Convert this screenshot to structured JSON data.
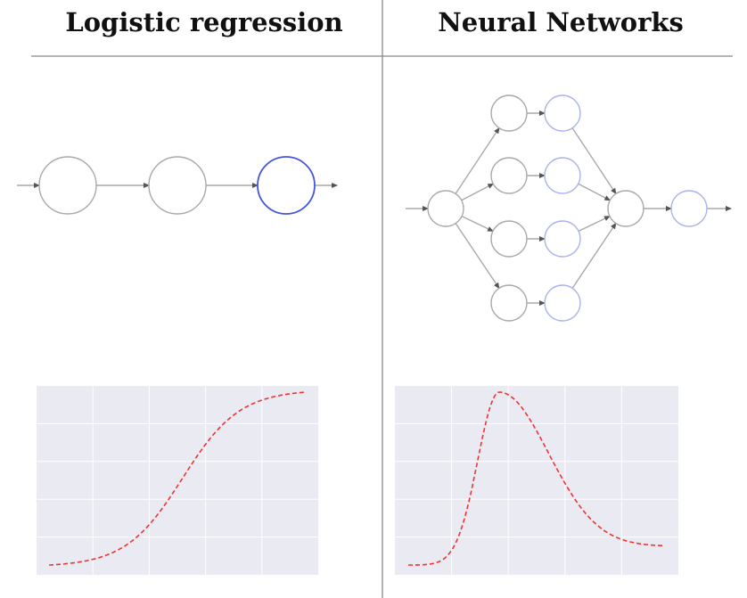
{
  "columns": [
    {
      "title": "Logistic regression"
    },
    {
      "title": "Neural Networks"
    }
  ],
  "colors": {
    "node_gray": "#a9a9a9",
    "node_blue_strong": "#4455dd",
    "node_blue_light": "#aab2ee",
    "arrow": "#a9a9a9",
    "curve": "#ee3333",
    "plot_bg": "#eaeaf2",
    "grid": "#ffffff"
  },
  "left_diagram": {
    "nodes": [
      {
        "id": "n1",
        "style": "gray"
      },
      {
        "id": "n2",
        "style": "gray"
      },
      {
        "id": "n3",
        "style": "blue-strong"
      }
    ]
  },
  "right_diagram": {
    "nodes": [
      {
        "id": "input",
        "style": "gray"
      },
      {
        "id": "h1",
        "style": "gray"
      },
      {
        "id": "h2",
        "style": "gray"
      },
      {
        "id": "h3",
        "style": "gray"
      },
      {
        "id": "h4",
        "style": "gray"
      },
      {
        "id": "a1",
        "style": "blue-light"
      },
      {
        "id": "a2",
        "style": "blue-light"
      },
      {
        "id": "a3",
        "style": "blue-light"
      },
      {
        "id": "a4",
        "style": "blue-light"
      },
      {
        "id": "sum",
        "style": "gray"
      },
      {
        "id": "out",
        "style": "blue-light"
      }
    ]
  },
  "plots": [
    {
      "id": "sigmoid",
      "shape": "sigmoid",
      "line_style": "dashed"
    },
    {
      "id": "bump",
      "shape": "skewed-bump",
      "line_style": "dashed"
    }
  ]
}
